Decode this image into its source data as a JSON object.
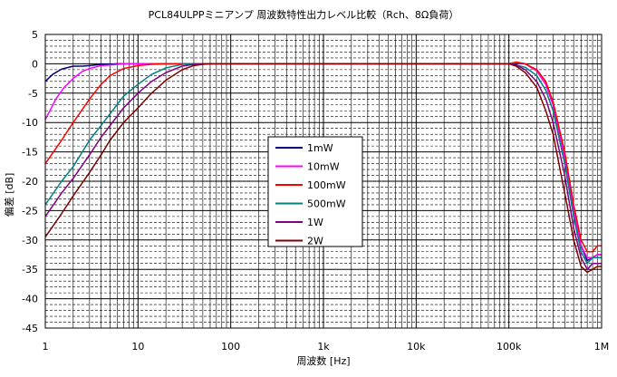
{
  "chart_data": {
    "type": "line",
    "title": "PCL84ULPPミニアンプ 周波数特性出力レベル比較（Rch、8Ω負荷）",
    "xlabel": "周波数 [Hz]",
    "ylabel": "偏差 [dB]",
    "xscale": "log",
    "xlim": [
      1,
      1000000
    ],
    "ylim": [
      -45,
      5
    ],
    "x_tick_values": [
      1,
      10,
      100,
      1000,
      10000,
      100000,
      1000000
    ],
    "x_tick_labels": [
      "1",
      "10",
      "100",
      "1k",
      "10k",
      "100k",
      "1M"
    ],
    "y_tick_values": [
      5,
      0,
      -5,
      -10,
      -15,
      -20,
      -25,
      -30,
      -35,
      -40,
      -45
    ],
    "y_tick_labels": [
      "5",
      "0",
      "-5",
      "-10",
      "-15",
      "-20",
      "-25",
      "-30",
      "-35",
      "-40",
      "-45"
    ],
    "grid": true,
    "legend_position": "center-left",
    "series": [
      {
        "name": "1mW",
        "color": "#000080",
        "points": [
          [
            1,
            -3
          ],
          [
            1.2,
            -1.8
          ],
          [
            1.5,
            -0.9
          ],
          [
            2,
            -0.4
          ],
          [
            2.5,
            -0.4
          ],
          [
            3,
            -0.3
          ],
          [
            4,
            -0.1
          ],
          [
            5,
            -0.1
          ],
          [
            6,
            0
          ],
          [
            100000,
            0
          ],
          [
            120000,
            0.2
          ],
          [
            150000,
            0
          ],
          [
            200000,
            -1.2
          ],
          [
            250000,
            -3.5
          ],
          [
            300000,
            -7
          ],
          [
            400000,
            -16
          ],
          [
            500000,
            -25
          ],
          [
            600000,
            -31
          ],
          [
            700000,
            -33.5
          ],
          [
            800000,
            -33
          ],
          [
            900000,
            -32.5
          ],
          [
            1000000,
            -32.5
          ]
        ]
      },
      {
        "name": "10mW",
        "color": "#ff00ff",
        "points": [
          [
            1,
            -9.5
          ],
          [
            1.3,
            -6
          ],
          [
            1.6,
            -4
          ],
          [
            2,
            -2.5
          ],
          [
            2.5,
            -1.3
          ],
          [
            3,
            -0.8
          ],
          [
            4,
            -0.3
          ],
          [
            5,
            -0.2
          ],
          [
            7,
            0
          ],
          [
            100000,
            0
          ],
          [
            120000,
            0.2
          ],
          [
            150000,
            0
          ],
          [
            200000,
            -1.2
          ],
          [
            250000,
            -3.5
          ],
          [
            300000,
            -7
          ],
          [
            400000,
            -16
          ],
          [
            500000,
            -25
          ],
          [
            600000,
            -31
          ],
          [
            700000,
            -33
          ],
          [
            800000,
            -33
          ],
          [
            900000,
            -32.5
          ],
          [
            1000000,
            -32.5
          ]
        ]
      },
      {
        "name": "100mW",
        "color": "#ff0000",
        "points": [
          [
            1,
            -17
          ],
          [
            1.5,
            -13
          ],
          [
            2,
            -10
          ],
          [
            3,
            -6
          ],
          [
            4,
            -3.5
          ],
          [
            5,
            -2
          ],
          [
            7,
            -0.8
          ],
          [
            10,
            -0.3
          ],
          [
            14,
            -0.1
          ],
          [
            20,
            0
          ],
          [
            100000,
            0
          ],
          [
            120000,
            0.3
          ],
          [
            150000,
            0
          ],
          [
            200000,
            -1
          ],
          [
            250000,
            -3
          ],
          [
            300000,
            -6.5
          ],
          [
            400000,
            -15
          ],
          [
            500000,
            -24
          ],
          [
            600000,
            -30
          ],
          [
            700000,
            -32
          ],
          [
            800000,
            -32
          ],
          [
            900000,
            -31
          ],
          [
            1000000,
            -31
          ]
        ]
      },
      {
        "name": "500mW",
        "color": "#008080",
        "points": [
          [
            1,
            -24
          ],
          [
            1.5,
            -20
          ],
          [
            2,
            -17.5
          ],
          [
            3,
            -13
          ],
          [
            4,
            -10.5
          ],
          [
            5,
            -8.5
          ],
          [
            7,
            -5.5
          ],
          [
            10,
            -3.5
          ],
          [
            14,
            -1.8
          ],
          [
            20,
            -0.7
          ],
          [
            30,
            -0.1
          ],
          [
            40,
            0
          ],
          [
            100000,
            0
          ],
          [
            120000,
            -0.2
          ],
          [
            150000,
            -0.6
          ],
          [
            200000,
            -2
          ],
          [
            250000,
            -4.5
          ],
          [
            300000,
            -8
          ],
          [
            400000,
            -17
          ],
          [
            500000,
            -26
          ],
          [
            600000,
            -32
          ],
          [
            700000,
            -34
          ],
          [
            800000,
            -33
          ],
          [
            900000,
            -33
          ],
          [
            1000000,
            -33
          ]
        ]
      },
      {
        "name": "1W",
        "color": "#800080",
        "points": [
          [
            1,
            -26
          ],
          [
            1.5,
            -22
          ],
          [
            2,
            -19.5
          ],
          [
            3,
            -15.5
          ],
          [
            4,
            -12.5
          ],
          [
            5,
            -10.5
          ],
          [
            7,
            -7.5
          ],
          [
            10,
            -5
          ],
          [
            14,
            -3
          ],
          [
            20,
            -1.5
          ],
          [
            30,
            -0.4
          ],
          [
            40,
            -0.1
          ],
          [
            50,
            0
          ],
          [
            100000,
            0
          ],
          [
            120000,
            -0.2
          ],
          [
            150000,
            -1
          ],
          [
            200000,
            -3
          ],
          [
            250000,
            -6
          ],
          [
            300000,
            -10
          ],
          [
            400000,
            -19
          ],
          [
            500000,
            -28
          ],
          [
            600000,
            -33
          ],
          [
            700000,
            -35
          ],
          [
            800000,
            -34
          ],
          [
            900000,
            -34
          ],
          [
            1000000,
            -34
          ]
        ]
      },
      {
        "name": "2W",
        "color": "#800000",
        "points": [
          [
            1,
            -29.5
          ],
          [
            1.5,
            -25.5
          ],
          [
            2,
            -22.5
          ],
          [
            3,
            -18.5
          ],
          [
            4,
            -15.5
          ],
          [
            5,
            -13
          ],
          [
            7,
            -10
          ],
          [
            10,
            -7.5
          ],
          [
            14,
            -5
          ],
          [
            20,
            -2.8
          ],
          [
            30,
            -1
          ],
          [
            40,
            -0.3
          ],
          [
            50,
            -0.1
          ],
          [
            60,
            0
          ],
          [
            100000,
            0
          ],
          [
            120000,
            -0.4
          ],
          [
            150000,
            -1.5
          ],
          [
            200000,
            -4
          ],
          [
            250000,
            -8
          ],
          [
            300000,
            -12
          ],
          [
            400000,
            -22
          ],
          [
            500000,
            -30
          ],
          [
            600000,
            -34.5
          ],
          [
            700000,
            -35.5
          ],
          [
            800000,
            -35
          ],
          [
            900000,
            -34.5
          ],
          [
            1000000,
            -34.5
          ]
        ]
      }
    ]
  }
}
